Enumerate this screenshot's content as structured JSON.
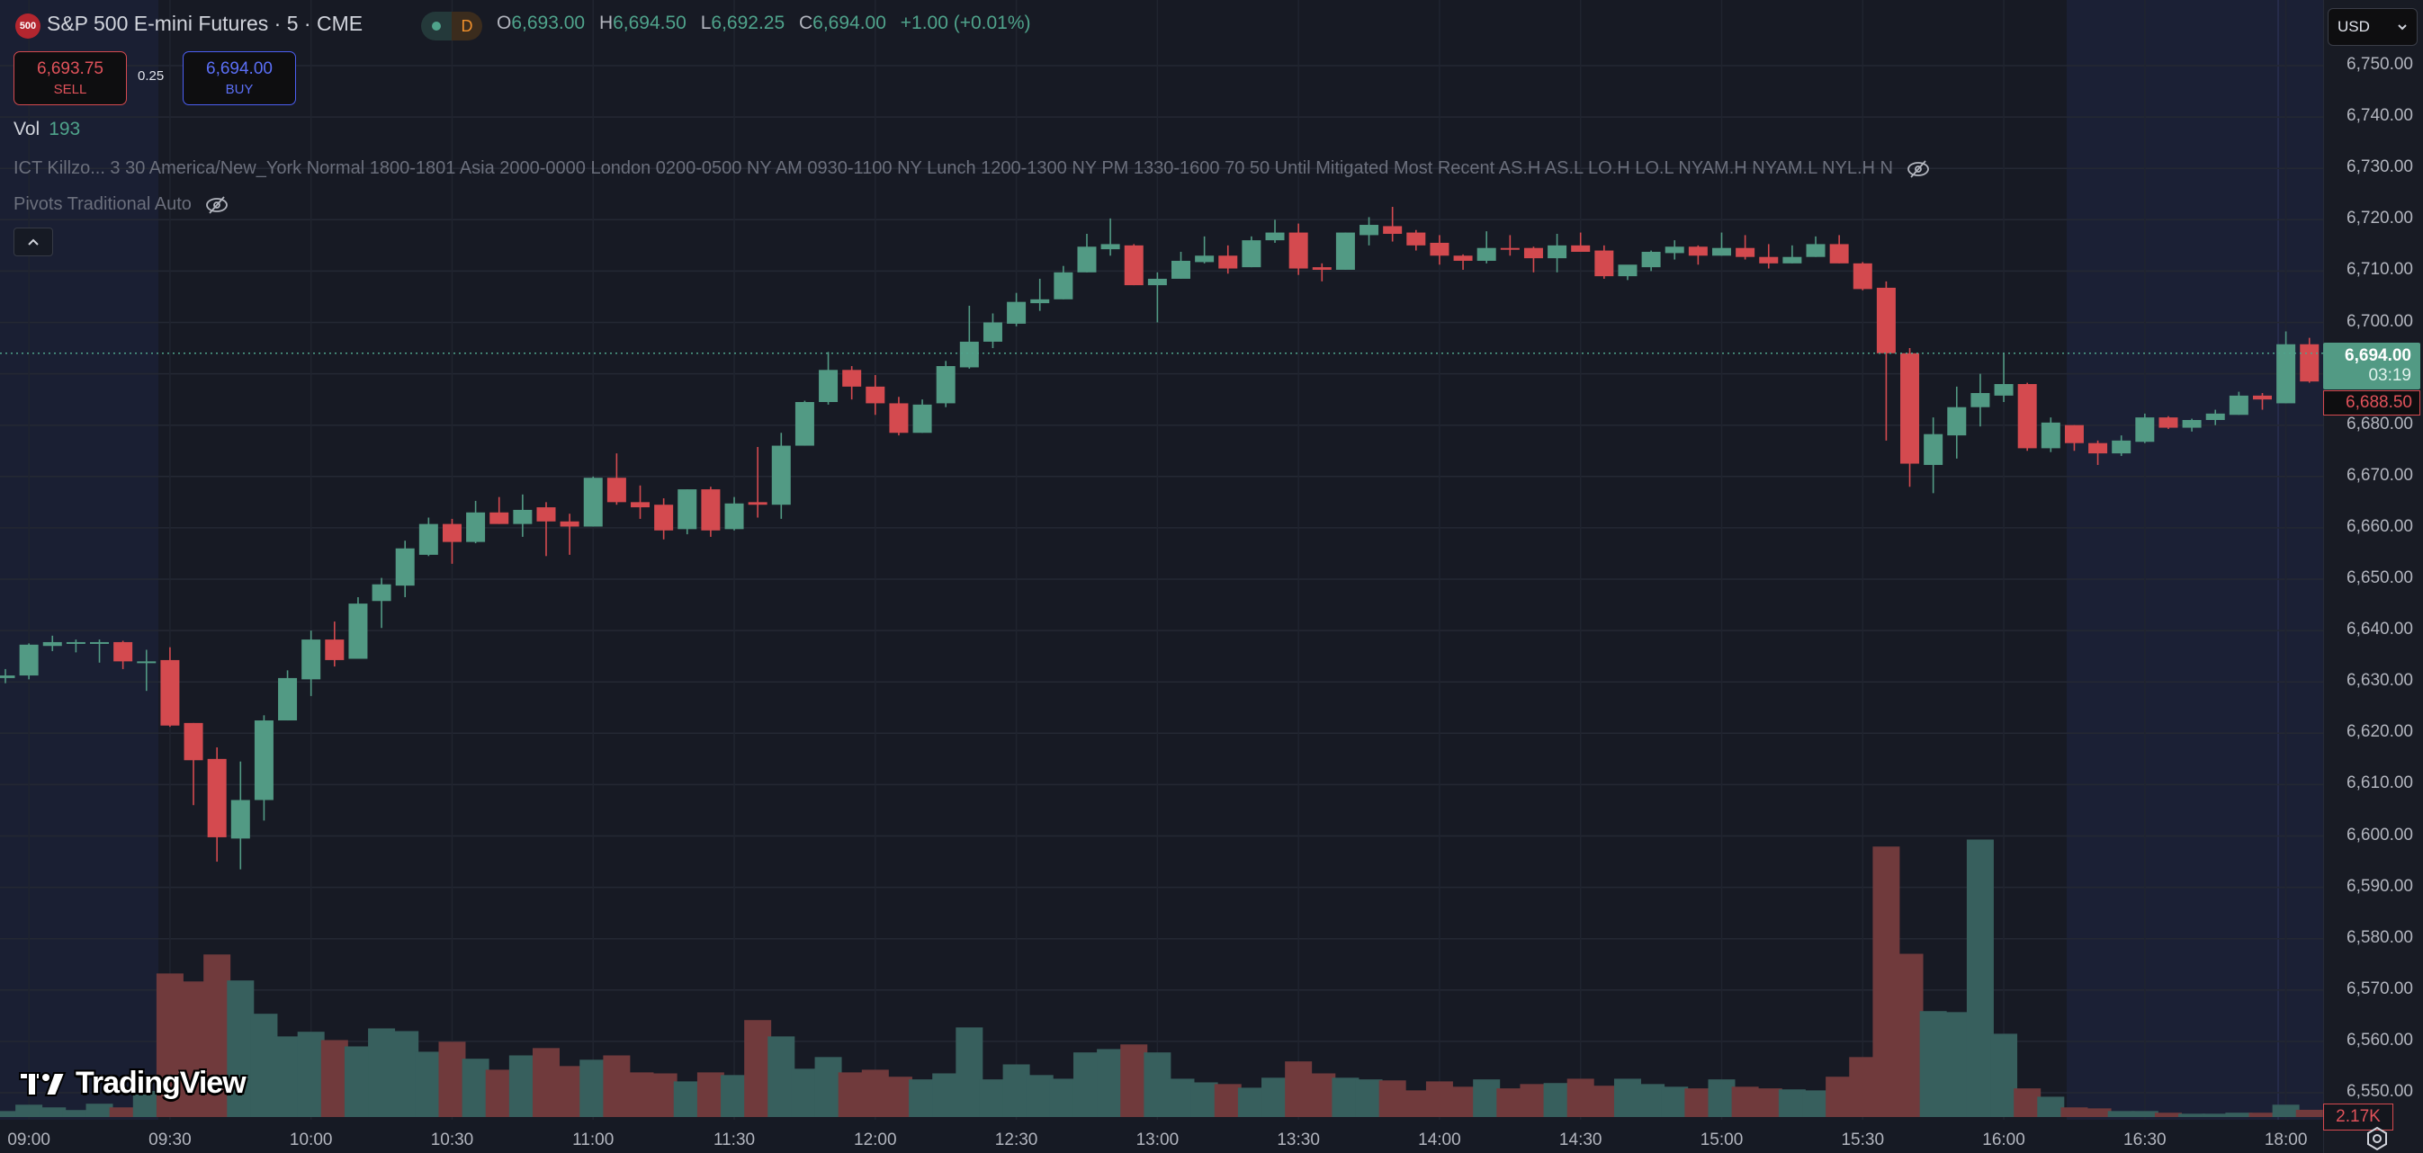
{
  "header": {
    "symbol_badge": "500",
    "title": "S&P 500 E-mini Futures · 5 · CME",
    "session_badge": "D",
    "ohlc": [
      {
        "key": "O",
        "value": "6,693.00"
      },
      {
        "key": "H",
        "value": "6,694.50"
      },
      {
        "key": "L",
        "value": "6,692.25"
      },
      {
        "key": "C",
        "value": "6,694.00"
      }
    ],
    "change": "+1.00 (+0.01%)"
  },
  "trade": {
    "sell_price": "6,693.75",
    "sell_label": "SELL",
    "spread": "0.25",
    "buy_price": "6,694.00",
    "buy_label": "BUY"
  },
  "volume_legend": {
    "label": "Vol",
    "value": "193"
  },
  "indicators": [
    {
      "text": "ICT Killzo...  3 30 America/New_York Normal 1800-1801 Asia 2000-0000 London 0200-0500 NY AM 0930-1100 NY Lunch 1200-1300 NY PM 1330-1600 70 50 Until Mitigated Most Recent AS.H AS.L LO.H LO.L NYAM.H NYAM.L NYL.H N"
    },
    {
      "text": "Pivots Traditional Auto"
    }
  ],
  "currency": "USD",
  "price_axis": {
    "current_price": "6,694.00",
    "countdown": "03:19",
    "secondary_price": "6,688.50",
    "volume_label": "2.17K"
  },
  "watermark": "TradingView",
  "colors": {
    "up": "#529a84",
    "down": "#d44a4f",
    "vol_up": "#375f5d",
    "vol_down": "#703a3c",
    "grid": "#242833",
    "session_bg": "#1a1f33"
  },
  "chart_data": {
    "type": "candlestick",
    "interval": "5",
    "ylim": [
      6550,
      6750
    ],
    "yticks": [
      "6,750.00",
      "6,740.00",
      "6,730.00",
      "6,720.00",
      "6,710.00",
      "6,700.00",
      "6,690.00",
      "6,680.00",
      "6,670.00",
      "6,660.00",
      "6,650.00",
      "6,640.00",
      "6,630.00",
      "6,620.00",
      "6,610.00",
      "6,600.00",
      "6,590.00",
      "6,580.00",
      "6,570.00",
      "6,560.00",
      "6,550.00"
    ],
    "ytick_values": [
      6750,
      6740,
      6730,
      6720,
      6710,
      6700,
      6690,
      6680,
      6670,
      6660,
      6650,
      6640,
      6630,
      6620,
      6610,
      6600,
      6590,
      6580,
      6570,
      6560,
      6550
    ],
    "xticks": [
      {
        "label": "09:00",
        "t": "09:00"
      },
      {
        "label": "09:30",
        "t": "09:30"
      },
      {
        "label": "10:00",
        "t": "10:00"
      },
      {
        "label": "10:30",
        "t": "10:30"
      },
      {
        "label": "11:00",
        "t": "11:00"
      },
      {
        "label": "11:30",
        "t": "11:30"
      },
      {
        "label": "12:00",
        "t": "12:00"
      },
      {
        "label": "12:30",
        "t": "12:30"
      },
      {
        "label": "13:00",
        "t": "13:00"
      },
      {
        "label": "13:30",
        "t": "13:30"
      },
      {
        "label": "14:00",
        "t": "14:00"
      },
      {
        "label": "14:30",
        "t": "14:30"
      },
      {
        "label": "15:00",
        "t": "15:00"
      },
      {
        "label": "15:30",
        "t": "15:30"
      },
      {
        "label": "16:00",
        "t": "16:00"
      },
      {
        "label": "16:30",
        "t": "16:30"
      },
      {
        "label": "18:00",
        "t": "18:00"
      }
    ],
    "current_price_line": 6694,
    "volume_unit": "K",
    "candles": [
      [
        "08:55",
        6630.75,
        6632.5,
        6629.75,
        6631.25
      ],
      [
        "09:00",
        6631.25,
        6637.5,
        6630.5,
        6637.25
      ],
      [
        "09:05",
        6637,
        6639,
        6636,
        6637.75
      ],
      [
        "09:10",
        6637.5,
        6638.25,
        6635.75,
        6637.75
      ],
      [
        "09:15",
        6637.5,
        6638.25,
        6633.75,
        6637.75
      ],
      [
        "09:20",
        6637.75,
        6638,
        6632.5,
        6634
      ],
      [
        "09:25",
        6634,
        6636.25,
        6628.25,
        6634
      ],
      [
        "09:30",
        6634.25,
        6636.75,
        6621.25,
        6621.5
      ],
      [
        "09:35",
        6622,
        6622,
        6606,
        6614.75
      ],
      [
        "09:40",
        6615,
        6617.25,
        6595,
        6599.75
      ],
      [
        "09:45",
        6599.5,
        6614.5,
        6593.5,
        6607
      ],
      [
        "09:50",
        6607,
        6623.5,
        6603,
        6622.5
      ],
      [
        "09:55",
        6622.5,
        6632.25,
        6622.5,
        6630.75
      ],
      [
        "10:00",
        6630.5,
        6640,
        6627.25,
        6638.25
      ],
      [
        "10:05",
        6638.25,
        6641.75,
        6633,
        6634.25
      ],
      [
        "10:10",
        6634.5,
        6646.5,
        6634.5,
        6645.25
      ],
      [
        "10:15",
        6645.75,
        6650.25,
        6640.5,
        6649
      ],
      [
        "10:20",
        6648.75,
        6657.5,
        6646.5,
        6656
      ],
      [
        "10:25",
        6654.75,
        6662,
        6654.5,
        6660.75
      ],
      [
        "10:30",
        6660.75,
        6661.75,
        6653,
        6657.25
      ],
      [
        "10:35",
        6657.25,
        6665.25,
        6657,
        6663
      ],
      [
        "10:40",
        6663,
        6666,
        6660.75,
        6660.75
      ],
      [
        "10:45",
        6660.75,
        6666.5,
        6658.25,
        6663.5
      ],
      [
        "10:50",
        6664,
        6665,
        6654.5,
        6661.25
      ],
      [
        "10:55",
        6661.25,
        6662.75,
        6654.75,
        6660.25
      ],
      [
        "11:00",
        6660.25,
        6670,
        6660.25,
        6669.75
      ],
      [
        "11:05",
        6669.75,
        6674.5,
        6664.5,
        6665
      ],
      [
        "11:10",
        6665,
        6668.25,
        6661.75,
        6664
      ],
      [
        "11:15",
        6664.5,
        6665.75,
        6657.75,
        6659.5
      ],
      [
        "11:20",
        6659.75,
        6667.5,
        6658.75,
        6667.5
      ],
      [
        "11:25",
        6667.5,
        6668,
        6658.25,
        6659.5
      ],
      [
        "11:30",
        6659.75,
        6666,
        6659.5,
        6664.75
      ],
      [
        "11:35",
        6665,
        6675.75,
        6662,
        6664.5
      ],
      [
        "11:40",
        6664.5,
        6678.5,
        6661.75,
        6676
      ],
      [
        "11:45",
        6676,
        6684.75,
        6676,
        6684.5
      ],
      [
        "11:50",
        6684.5,
        6694.25,
        6684,
        6690.75
      ],
      [
        "11:55",
        6690.75,
        6691.5,
        6685,
        6687.5
      ],
      [
        "12:00",
        6687.5,
        6689.75,
        6682,
        6684.25
      ],
      [
        "12:05",
        6684.25,
        6685.5,
        6678,
        6678.5
      ],
      [
        "12:10",
        6678.5,
        6685,
        6678.5,
        6684
      ],
      [
        "12:15",
        6684.25,
        6692.5,
        6683.5,
        6691.5
      ],
      [
        "12:20",
        6691.25,
        6703.25,
        6691,
        6696.25
      ],
      [
        "12:25",
        6696.25,
        6701.75,
        6695,
        6700
      ],
      [
        "12:30",
        6699.75,
        6705.75,
        6699.25,
        6704
      ],
      [
        "12:35",
        6703.75,
        6708.5,
        6702.25,
        6704.5
      ],
      [
        "12:40",
        6704.5,
        6711,
        6704.5,
        6709.75
      ],
      [
        "12:45",
        6709.75,
        6717.25,
        6709.75,
        6714.75
      ],
      [
        "12:50",
        6714.25,
        6720.25,
        6713,
        6715.25
      ],
      [
        "12:55",
        6715,
        6715.25,
        6707.25,
        6707.25
      ],
      [
        "13:00",
        6707.25,
        6709.75,
        6700,
        6708.5
      ],
      [
        "13:05",
        6708.5,
        6713.75,
        6708.5,
        6712
      ],
      [
        "13:10",
        6711.75,
        6716.75,
        6711.5,
        6713
      ],
      [
        "13:15",
        6713,
        6715,
        6709.5,
        6710.5
      ],
      [
        "13:20",
        6710.75,
        6716.75,
        6710.75,
        6716
      ],
      [
        "13:25",
        6716,
        6720,
        6715.5,
        6717.5
      ],
      [
        "13:30",
        6717.5,
        6719.25,
        6709.25,
        6710.5
      ],
      [
        "13:35",
        6710.75,
        6711.5,
        6708,
        6710.25
      ],
      [
        "13:40",
        6710.25,
        6717.5,
        6710.25,
        6717.5
      ],
      [
        "13:45",
        6717,
        6720.5,
        6715,
        6719
      ],
      [
        "13:50",
        6718.75,
        6722.5,
        6715.75,
        6717.25
      ],
      [
        "13:55",
        6717.5,
        6718,
        6714,
        6715
      ],
      [
        "14:00",
        6715.5,
        6717,
        6711.25,
        6713
      ],
      [
        "14:05",
        6713,
        6713.25,
        6710.25,
        6712
      ],
      [
        "14:10",
        6712,
        6717.75,
        6711.5,
        6714.5
      ],
      [
        "14:15",
        6714.5,
        6717,
        6713,
        6714.25
      ],
      [
        "14:20",
        6714.5,
        6714.75,
        6709.75,
        6712.5
      ],
      [
        "14:25",
        6712.5,
        6717.25,
        6709.75,
        6715
      ],
      [
        "14:30",
        6715,
        6717.5,
        6713.75,
        6713.75
      ],
      [
        "14:35",
        6714,
        6715,
        6708.5,
        6709
      ],
      [
        "14:40",
        6709,
        6709.5,
        6708.25,
        6711.25
      ],
      [
        "14:45",
        6710.75,
        6714,
        6710,
        6713.75
      ],
      [
        "14:50",
        6713.5,
        6716,
        6712.25,
        6714.75
      ],
      [
        "14:55",
        6714.75,
        6715,
        6711.25,
        6713
      ],
      [
        "15:00",
        6713,
        6717.5,
        6713,
        6714.5
      ],
      [
        "15:05",
        6714.5,
        6717,
        6712.25,
        6712.75
      ],
      [
        "15:10",
        6712.75,
        6715.25,
        6710.5,
        6711.5
      ],
      [
        "15:15",
        6711.5,
        6715,
        6711.5,
        6712.75
      ],
      [
        "15:20",
        6712.75,
        6716.75,
        6712.75,
        6715.25
      ],
      [
        "15:25",
        6715.25,
        6717,
        6711.5,
        6711.5
      ],
      [
        "15:30",
        6711.5,
        6711.75,
        6706.25,
        6706.5
      ],
      [
        "15:35",
        6706.75,
        6708,
        6677,
        6694
      ],
      [
        "15:40",
        6694,
        6695,
        6668,
        6672.5
      ],
      [
        "15:45",
        6672.25,
        6681.5,
        6666.75,
        6678.25
      ],
      [
        "15:50",
        6678,
        6687.5,
        6673.5,
        6683.5
      ],
      [
        "15:55",
        6683.5,
        6690,
        6679.75,
        6686.25
      ],
      [
        "16:00",
        6685.75,
        6694,
        6684.5,
        6688
      ],
      [
        "16:05",
        6688,
        6688.25,
        6675,
        6675.5
      ],
      [
        "16:10",
        6675.5,
        6681.5,
        6674.75,
        6680.5
      ],
      [
        "16:15",
        6680,
        6680,
        6675,
        6676.5
      ],
      [
        "16:20",
        6676.5,
        6677,
        6672.25,
        6674.5
      ],
      [
        "16:25",
        6674.5,
        6678,
        6674,
        6677
      ],
      [
        "16:30",
        6676.75,
        6682.25,
        6676.5,
        6681.5
      ],
      [
        "16:35",
        6681.5,
        6681.75,
        6679.25,
        6679.5
      ],
      [
        "16:40",
        6679.5,
        6681.25,
        6678.75,
        6681
      ],
      [
        "16:45",
        6681,
        6683,
        6680,
        6682.25
      ],
      [
        "16:50",
        6682,
        6686.5,
        6682,
        6685.75
      ],
      [
        "16:55",
        6685.75,
        6686.25,
        6683,
        6685
      ],
      [
        "18:00",
        6684.25,
        6698.25,
        6684.25,
        6695.75
      ],
      [
        "18:05",
        6695.75,
        6697,
        6688.25,
        6688.5
      ]
    ],
    "volume": [
      1.8,
      3.7,
      2.9,
      2.1,
      4.0,
      2.9,
      7.8,
      43.1,
      40.7,
      48.8,
      41,
      31,
      24.2,
      25.6,
      23.1,
      21.2,
      26.6,
      25.8,
      19.6,
      22.6,
      17.5,
      14.2,
      18.5,
      20.7,
      15.3,
      17.2,
      18.5,
      13.4,
      13.1,
      10.7,
      13.4,
      12.6,
      29.1,
      24.2,
      14.5,
      18,
      13.4,
      14.2,
      12.1,
      11.3,
      13.1,
      26.9,
      11.3,
      15.8,
      12.6,
      11.5,
      19.4,
      20.4,
      21.8,
      19.4,
      11.5,
      10.4,
      9.9,
      8.8,
      11.8,
      16.7,
      13.1,
      11.8,
      11.3,
      11,
      8,
      10.7,
      9.1,
      11.3,
      8.6,
      9.9,
      10.2,
      11.5,
      9.4,
      11.5,
      9.9,
      9.1,
      8.6,
      11.3,
      9.1,
      8.6,
      8.3,
      8,
      12.1,
      18,
      81.2,
      49,
      31.8,
      31.5,
      83.3,
      25,
      8.6,
      6.1,
      2.9,
      2.6,
      1.8,
      1.8,
      1.3,
      1,
      1,
      1.3,
      1.3,
      3.7,
      2.17
    ]
  }
}
